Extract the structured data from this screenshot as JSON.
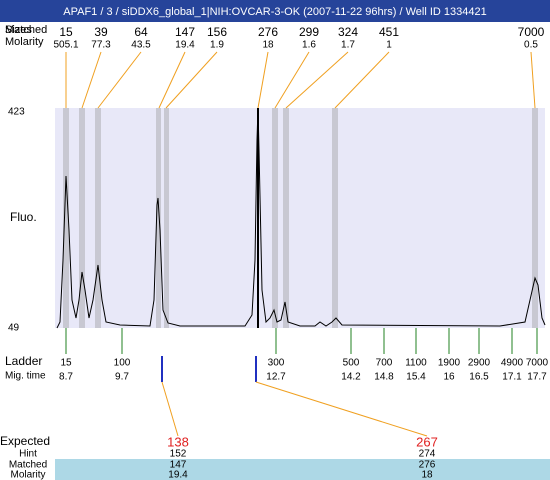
{
  "header": {
    "title": "APAF1 / 3 / siDDX6_global_1|NIH:OVCAR-3-OK (2007-11-22 96hrs) / Well ID 1334421"
  },
  "top": {
    "row_labels": [
      "Sizes",
      "Matched",
      "Molarity"
    ],
    "peaks": [
      {
        "size": 15,
        "molarity": 505.1
      },
      {
        "size": 39,
        "molarity": 77.3
      },
      {
        "size": 64,
        "molarity": 43.5
      },
      {
        "size": 147,
        "molarity": 19.4
      },
      {
        "size": 156,
        "molarity": 1.9
      },
      {
        "size": 276,
        "molarity": 18
      },
      {
        "size": 299,
        "molarity": 1.6
      },
      {
        "size": 324,
        "molarity": 1.7
      },
      {
        "size": 451,
        "molarity": 1
      },
      {
        "size": 7000,
        "molarity": 0.5
      }
    ]
  },
  "plot": {
    "y_label": "Fluo.",
    "y_max": 423,
    "y_min": 49
  },
  "ladder": {
    "label": "Ladder",
    "mig_label": "Mig. time",
    "sizes": [
      15,
      100,
      300,
      500,
      700,
      1100,
      1900,
      2900,
      4900,
      7000
    ],
    "mig_times": [
      8.7,
      9.7,
      12.7,
      14.2,
      14.8,
      15.4,
      16,
      16.5,
      17.1,
      17.7
    ]
  },
  "expected": {
    "label": "Expected",
    "row_labels": [
      "Hint",
      "Matched",
      "Molarity"
    ],
    "items": [
      {
        "expected": 138,
        "hint": 152,
        "matched": 147,
        "molarity": 19.4
      },
      {
        "expected": 267,
        "hint": 274,
        "matched": 276,
        "molarity": 18
      }
    ]
  }
}
